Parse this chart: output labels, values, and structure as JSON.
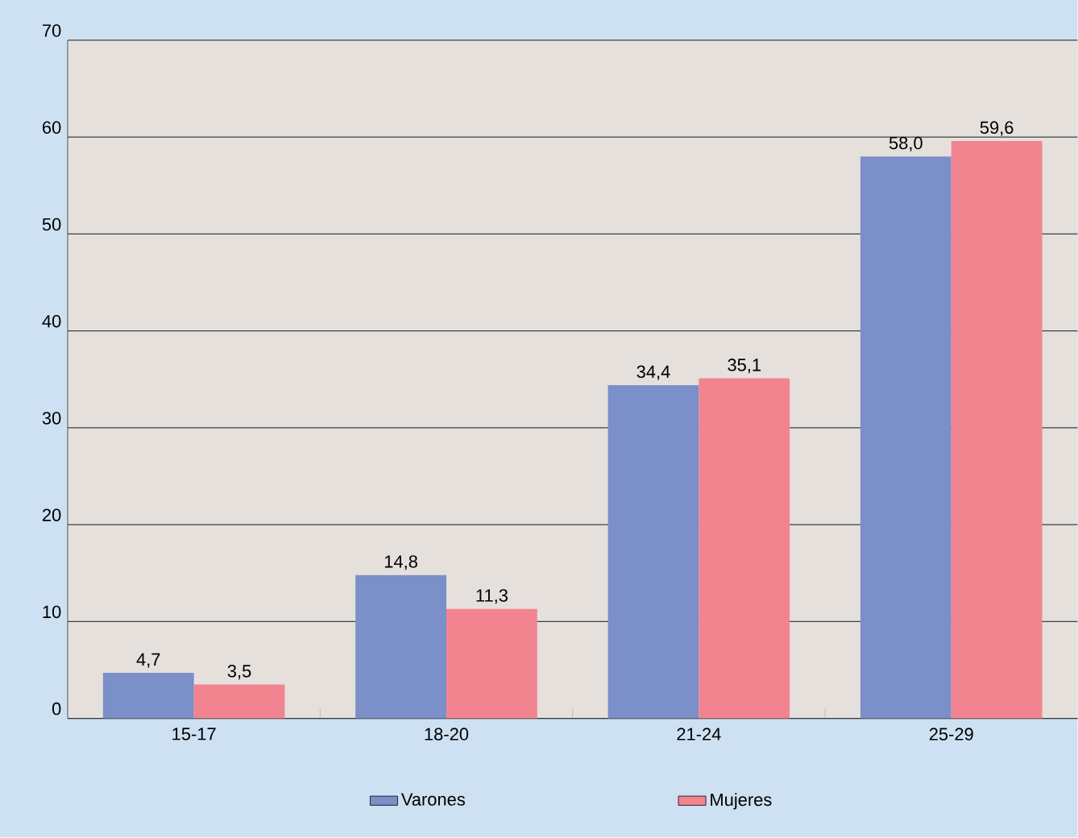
{
  "chart_data": {
    "type": "bar",
    "categories": [
      "15-17",
      "18-20",
      "21-24",
      "25-29"
    ],
    "series": [
      {
        "name": "Varones",
        "color": "#7b8fc8",
        "values": [
          4.7,
          14.8,
          34.4,
          58.0
        ],
        "value_labels": [
          "4,7",
          "14,8",
          "34,4",
          "58,0"
        ]
      },
      {
        "name": "Mujeres",
        "color": "#f28490",
        "values": [
          3.5,
          11.3,
          35.1,
          59.6
        ],
        "value_labels": [
          "3,5",
          "11,3",
          "35,1",
          "59,6"
        ]
      }
    ],
    "ylim": [
      0,
      70
    ],
    "yticks": [
      0,
      10,
      20,
      30,
      40,
      50,
      60,
      70
    ],
    "grid": "y",
    "legend": "bottom"
  }
}
